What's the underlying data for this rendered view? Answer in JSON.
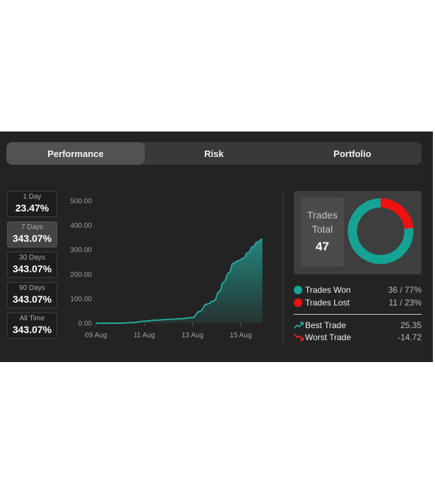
{
  "tabs": [
    {
      "label": "Performance",
      "active": true
    },
    {
      "label": "Risk",
      "active": false
    },
    {
      "label": "Portfolio",
      "active": false
    }
  ],
  "periods": [
    {
      "label": "1 Day",
      "value": "23.47%"
    },
    {
      "label": "7 Days",
      "value": "343.07%",
      "active": true
    },
    {
      "label": "30 Days",
      "value": "343.07%"
    },
    {
      "label": "90 Days",
      "value": "343.07%"
    },
    {
      "label": "All Time",
      "value": "343.07%"
    }
  ],
  "chart_data": {
    "type": "area",
    "y_ticks": [
      "0.00",
      "100.00",
      "200.00",
      "300.00",
      "400.00",
      "500.00"
    ],
    "ylim": [
      0,
      500
    ],
    "x_ticks": [
      {
        "day": 9,
        "label": "09 Aug"
      },
      {
        "day": 11,
        "label": "11 Aug"
      },
      {
        "day": 13,
        "label": "13 Aug"
      },
      {
        "day": 15,
        "label": "15 Aug"
      }
    ],
    "xlim": [
      9,
      16
    ],
    "x": [
      9.0,
      9.5,
      10.0,
      10.5,
      11.0,
      11.5,
      12.0,
      12.5,
      13.0,
      13.3,
      13.6,
      13.9,
      14.1,
      14.3,
      14.5,
      14.7,
      14.9,
      15.1,
      15.3,
      15.5,
      15.7,
      15.9
    ],
    "values": [
      0,
      0,
      0,
      2,
      8,
      12,
      15,
      18,
      23,
      48,
      78,
      92,
      128,
      168,
      205,
      245,
      255,
      265,
      288,
      312,
      332,
      343
    ],
    "color": "#26a69a"
  },
  "stats": {
    "total_line1": "Trades",
    "total_line2": "Total",
    "total_value": "47",
    "won_fraction": 0.766,
    "won_color": "#16a394",
    "lost_color": "#ee1111",
    "won_label": "Trades Won",
    "won_value": "36 / 77%",
    "lost_label": "Trades Lost",
    "lost_value": "11 / 23%",
    "best_label": "Best Trade",
    "best_value": "25.35",
    "worst_label": "Worst Trade",
    "worst_value": "-14.72"
  }
}
